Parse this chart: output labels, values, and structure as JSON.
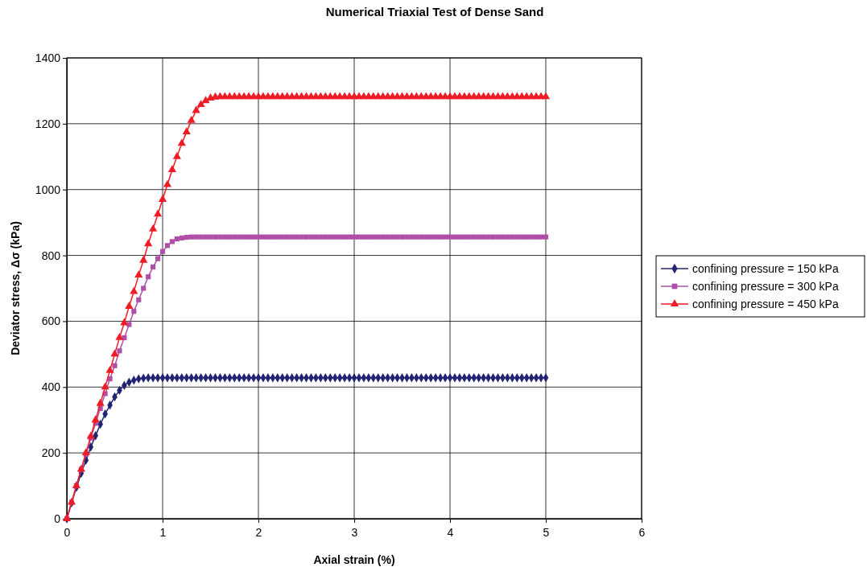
{
  "chart_data": {
    "type": "line",
    "title": "Numerical Triaxial Test of Dense Sand",
    "xlabel": "Axial strain (%)",
    "ylabel": "Deviator stress, Δσ (kPa)",
    "x": [
      0,
      0.05,
      0.1,
      0.15,
      0.2,
      0.25,
      0.3,
      0.35,
      0.4,
      0.45,
      0.5,
      0.55,
      0.6,
      0.65,
      0.7,
      0.75,
      0.8,
      0.85,
      0.9,
      0.95,
      1,
      1.05,
      1.1,
      1.15,
      1.2,
      1.25,
      1.3,
      1.35,
      1.4,
      1.45,
      1.5,
      1.55,
      1.6,
      1.65,
      1.7,
      1.75,
      1.8,
      1.85,
      1.9,
      1.95,
      2,
      2.05,
      2.1,
      2.15,
      2.2,
      2.25,
      2.3,
      2.35,
      2.4,
      2.45,
      2.5,
      2.55,
      2.6,
      2.65,
      2.7,
      2.75,
      2.8,
      2.85,
      2.9,
      2.95,
      3,
      3.05,
      3.1,
      3.15,
      3.2,
      3.25,
      3.3,
      3.35,
      3.4,
      3.45,
      3.5,
      3.55,
      3.6,
      3.65,
      3.7,
      3.75,
      3.8,
      3.85,
      3.9,
      3.95,
      4,
      4.05,
      4.1,
      4.15,
      4.2,
      4.25,
      4.3,
      4.35,
      4.4,
      4.45,
      4.5,
      4.55,
      4.6,
      4.65,
      4.7,
      4.75,
      4.8,
      4.85,
      4.9,
      4.95,
      5
    ],
    "series": [
      {
        "name": "confining pressure = 150 kPa",
        "color": "#232375",
        "marker": "diamond",
        "values": [
          0,
          48,
          95,
          138,
          178,
          218,
          252,
          287,
          318,
          345,
          370,
          390,
          405,
          415,
          421,
          425,
          427,
          428,
          428,
          428,
          428,
          428,
          428,
          428,
          428,
          428,
          428,
          428,
          428,
          428,
          428,
          428,
          428,
          428,
          428,
          428,
          428,
          428,
          428,
          428,
          428,
          428,
          428,
          428,
          428,
          428,
          428,
          428,
          428,
          428,
          428,
          428,
          428,
          428,
          428,
          428,
          428,
          428,
          428,
          428,
          428,
          428,
          428,
          428,
          428,
          428,
          428,
          428,
          428,
          428,
          428,
          428,
          428,
          428,
          428,
          428,
          428,
          428,
          428,
          428,
          428,
          428,
          428,
          428,
          428,
          428,
          428,
          428,
          428,
          428,
          428,
          428,
          428,
          428,
          428,
          428,
          428,
          428,
          428,
          428,
          428
        ]
      },
      {
        "name": "confining pressure = 300 kPa",
        "color": "#b04fa8",
        "marker": "square",
        "values": [
          0,
          50,
          100,
          150,
          195,
          245,
          290,
          335,
          380,
          425,
          465,
          510,
          550,
          590,
          630,
          665,
          700,
          735,
          765,
          790,
          812,
          830,
          842,
          850,
          853,
          855,
          856,
          856,
          856,
          856,
          856,
          856,
          856,
          856,
          856,
          856,
          856,
          856,
          856,
          856,
          856,
          856,
          856,
          856,
          856,
          856,
          856,
          856,
          856,
          856,
          856,
          856,
          856,
          856,
          856,
          856,
          856,
          856,
          856,
          856,
          856,
          856,
          856,
          856,
          856,
          856,
          856,
          856,
          856,
          856,
          856,
          856,
          856,
          856,
          856,
          856,
          856,
          856,
          856,
          856,
          856,
          856,
          856,
          856,
          856,
          856,
          856,
          856,
          856,
          856,
          856,
          856,
          856,
          856,
          856,
          856,
          856,
          856,
          856,
          856,
          856
        ]
      },
      {
        "name": "confining pressure = 450 kPa",
        "color": "#ee1c25",
        "marker": "triangle",
        "values": [
          0,
          50,
          100,
          150,
          200,
          250,
          300,
          350,
          400,
          450,
          500,
          550,
          595,
          645,
          690,
          740,
          785,
          835,
          880,
          925,
          970,
          1015,
          1060,
          1100,
          1140,
          1175,
          1210,
          1240,
          1258,
          1270,
          1278,
          1281,
          1282,
          1282,
          1282,
          1282,
          1282,
          1282,
          1282,
          1282,
          1282,
          1282,
          1282,
          1282,
          1282,
          1282,
          1282,
          1282,
          1282,
          1282,
          1282,
          1282,
          1282,
          1282,
          1282,
          1282,
          1282,
          1282,
          1282,
          1282,
          1282,
          1282,
          1282,
          1282,
          1282,
          1282,
          1282,
          1282,
          1282,
          1282,
          1282,
          1282,
          1282,
          1282,
          1282,
          1282,
          1282,
          1282,
          1282,
          1282,
          1282,
          1282,
          1282,
          1282,
          1282,
          1282,
          1282,
          1282,
          1282,
          1282,
          1282,
          1282,
          1282,
          1282,
          1282,
          1282,
          1282,
          1282,
          1282,
          1282,
          1282
        ]
      }
    ],
    "xlim": [
      0,
      6
    ],
    "xticks": [
      0,
      1,
      2,
      3,
      4,
      5,
      6
    ],
    "ylim": [
      0,
      1400
    ],
    "yticks": [
      0,
      200,
      400,
      600,
      800,
      1000,
      1200,
      1400
    ],
    "grid": true,
    "legend": "right",
    "line_style": "solid"
  }
}
